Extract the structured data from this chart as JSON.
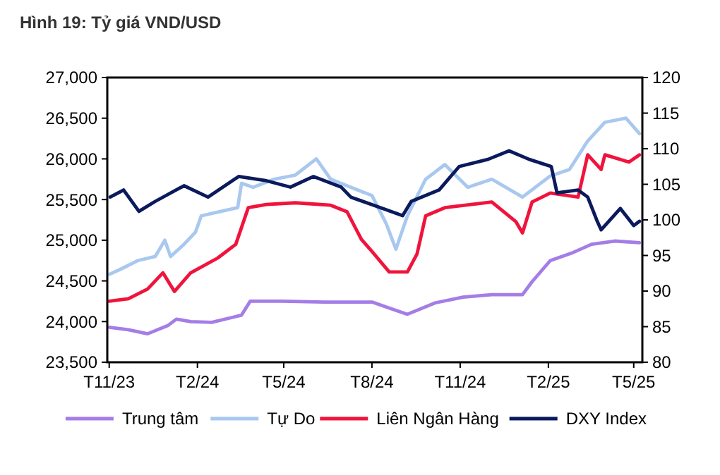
{
  "chart_data": {
    "type": "line",
    "title": "Hình 19: Tỷ giá VND/USD",
    "legend": "bottom",
    "grid": false,
    "xlim": [
      "2023-10-30",
      "2025-05-10"
    ],
    "xticks": [
      {
        "value": "2023-11-01",
        "label": "T11/23"
      },
      {
        "value": "2024-02-01",
        "label": "T2/24"
      },
      {
        "value": "2024-05-01",
        "label": "T5/24"
      },
      {
        "value": "2024-08-01",
        "label": "T8/24"
      },
      {
        "value": "2024-11-01",
        "label": "T11/24"
      },
      {
        "value": "2025-02-01",
        "label": "T2/25"
      },
      {
        "value": "2025-05-01",
        "label": "T5/25"
      }
    ],
    "ylim": [
      23500,
      27000
    ],
    "yticks": [
      {
        "value": 23500,
        "label": "23,500"
      },
      {
        "value": 24000,
        "label": "24,000"
      },
      {
        "value": 24500,
        "label": "24,500"
      },
      {
        "value": 25000,
        "label": "25,000"
      },
      {
        "value": 25500,
        "label": "25,500"
      },
      {
        "value": 26000,
        "label": "26,000"
      },
      {
        "value": 26500,
        "label": "26,500"
      },
      {
        "value": 27000,
        "label": "27,000"
      }
    ],
    "y2lim": [
      80,
      120
    ],
    "y2ticks": [
      80,
      85,
      90,
      95,
      100,
      105,
      110,
      115,
      120
    ],
    "series": [
      {
        "name": "Trung tâm",
        "color": "#a57de6",
        "x": [
          "2023-11-01",
          "2023-11-21",
          "2023-12-11",
          "2024-01-01",
          "2024-01-10",
          "2024-01-25",
          "2024-02-16",
          "2024-03-08",
          "2024-03-18",
          "2024-03-27",
          "2024-04-29",
          "2024-06-12",
          "2024-08-01",
          "2024-08-23",
          "2024-09-07",
          "2024-10-06",
          "2024-11-04",
          "2024-12-04",
          "2025-01-05",
          "2025-01-15",
          "2025-02-03",
          "2025-02-27",
          "2025-03-18",
          "2025-04-11",
          "2025-05-07"
        ],
        "values": [
          23930,
          23900,
          23850,
          23950,
          24030,
          24000,
          23990,
          24050,
          24080,
          24250,
          24250,
          24240,
          24240,
          24150,
          24090,
          24230,
          24300,
          24330,
          24330,
          24490,
          24750,
          24850,
          24950,
          24990,
          24970
        ]
      },
      {
        "name": "Tự Do",
        "color": "#a9c8ef",
        "x": [
          "2023-11-01",
          "2023-11-14",
          "2023-12-01",
          "2023-12-19",
          "2023-12-29",
          "2024-01-04",
          "2024-01-18",
          "2024-01-30",
          "2024-02-05",
          "2024-02-24",
          "2024-03-14",
          "2024-03-18",
          "2024-03-30",
          "2024-04-21",
          "2024-05-13",
          "2024-06-04",
          "2024-06-19",
          "2024-07-10",
          "2024-08-01",
          "2024-08-16",
          "2024-08-26",
          "2024-09-07",
          "2024-09-26",
          "2024-10-16",
          "2024-11-09",
          "2024-12-04",
          "2025-01-05",
          "2025-02-03",
          "2025-02-23",
          "2025-03-14",
          "2025-04-01",
          "2025-04-23",
          "2025-05-07"
        ],
        "values": [
          24580,
          24650,
          24750,
          24800,
          25000,
          24800,
          24950,
          25100,
          25300,
          25350,
          25400,
          25700,
          25650,
          25750,
          25800,
          26000,
          25750,
          25650,
          25550,
          25200,
          24890,
          25300,
          25750,
          25930,
          25650,
          25750,
          25530,
          25790,
          25870,
          26220,
          26450,
          26500,
          26310
        ]
      },
      {
        "name": "Liên Ngân Hàng",
        "color": "#f0143c",
        "x": [
          "2023-11-01",
          "2023-11-21",
          "2023-12-11",
          "2023-12-27",
          "2024-01-08",
          "2024-01-25",
          "2024-02-22",
          "2024-03-12",
          "2024-03-25",
          "2024-04-13",
          "2024-05-13",
          "2024-06-19",
          "2024-07-06",
          "2024-07-21",
          "2024-07-30",
          "2024-08-19",
          "2024-09-07",
          "2024-09-17",
          "2024-09-26",
          "2024-10-16",
          "2024-12-04",
          "2024-12-29",
          "2025-01-05",
          "2025-01-15",
          "2025-02-03",
          "2025-03-04",
          "2025-03-14",
          "2025-03-28",
          "2025-04-01",
          "2025-04-26",
          "2025-05-07"
        ],
        "values": [
          24250,
          24280,
          24400,
          24600,
          24370,
          24600,
          24780,
          24950,
          25400,
          25440,
          25460,
          25430,
          25350,
          25010,
          24890,
          24610,
          24610,
          24830,
          25300,
          25400,
          25470,
          25230,
          25090,
          25470,
          25580,
          25530,
          26050,
          25870,
          26050,
          25960,
          26050
        ]
      },
      {
        "name": "DXY Index",
        "color": "#0a1a5c",
        "axis": "y2",
        "x": [
          "2023-11-02",
          "2023-11-16",
          "2023-12-02",
          "2023-12-19",
          "2024-01-18",
          "2024-02-12",
          "2024-03-15",
          "2024-04-13",
          "2024-05-08",
          "2024-06-01",
          "2024-06-30",
          "2024-07-10",
          "2024-08-08",
          "2024-09-02",
          "2024-09-11",
          "2024-10-10",
          "2024-10-31",
          "2024-11-30",
          "2024-12-22",
          "2025-01-12",
          "2025-02-04",
          "2025-02-10",
          "2025-03-04",
          "2025-03-14",
          "2025-03-24",
          "2025-03-28",
          "2025-04-17",
          "2025-05-01",
          "2025-05-07"
        ],
        "values": [
          103.2,
          104.2,
          101.2,
          102.6,
          104.8,
          103.2,
          106.1,
          105.5,
          104.6,
          106.1,
          104.6,
          103.2,
          101.8,
          100.6,
          102.6,
          104.2,
          107.5,
          108.5,
          109.7,
          108.5,
          107.5,
          103.8,
          104.2,
          103.2,
          99.8,
          98.6,
          101.6,
          99.2,
          99.8
        ]
      }
    ]
  }
}
